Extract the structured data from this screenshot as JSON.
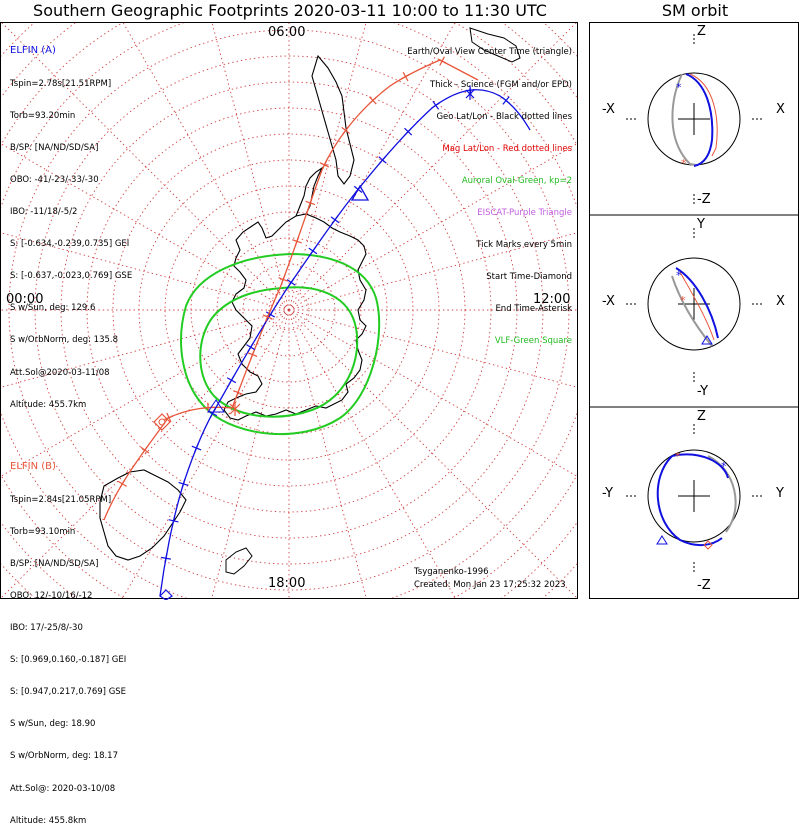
{
  "title": "Southern Geographic Footprints 2020-03-11 10:00 to 11:30 UTC",
  "orbit_title": "SM orbit",
  "hour_labels": {
    "top": "06:00",
    "left": "00:00",
    "right": "12:00",
    "bottom": "18:00"
  },
  "elfin_a": {
    "name": "ELFIN (A)",
    "color": "#1010e0",
    "lines": [
      "Tspin=2.78s[21.51RPM]",
      "Torb=93.20min",
      "B/SP: [NA/ND/SD/SA]",
      "OBO: -41/-23/-33/-30",
      "IBO: -11/18/-5/2",
      "S: [-0.634,-0.239,0.735] GEI",
      "S: [-0.637,-0.023,0.769] GSE",
      "S w/Sun, deg: 129.6",
      "S w/OrbNorm, deg: 135.8",
      "Att.Sol@2020-03-11/08",
      "Altitude: 455.7km"
    ]
  },
  "elfin_b": {
    "name": "ELFIN (B)",
    "color": "#e8553a",
    "lines": [
      "Tspin=2.84s[21.05RPM]",
      "Torb=93.10min",
      "B/SP: [NA/ND/SD/SA]",
      "OBO: 12/-10/16/-12",
      "IBO: 17/-25/8/-30",
      "S: [0.969,0.160,-0.187] GEI",
      "S: [0.947,0.217,0.769] GSE",
      "S w/Sun, deg: 18.90",
      "S w/OrbNorm, deg: 18.17",
      "Att.Sol@: 2020-03-10/08",
      "Altitude: 455.8km"
    ]
  },
  "legend": [
    {
      "text": "Earth/Oval View Center Time (triangle)",
      "color": "#000000"
    },
    {
      "text": "Thick - Science (FGM and/or EPD)",
      "color": "#000000"
    },
    {
      "text": "Geo Lat/Lon - Black dotted lines",
      "color": "#000000"
    },
    {
      "text": "Mag Lat/Lon - Red dotted lines",
      "color": "#e00000"
    },
    {
      "text": "Auroral Oval-Green, kp=2",
      "color": "#22bb22"
    },
    {
      "text": "EISCAT-Purple Triangle",
      "color": "#c060e0"
    },
    {
      "text": "Tick Marks every 5min",
      "color": "#000000"
    },
    {
      "text": "Start Time-Diamond",
      "color": "#000000"
    },
    {
      "text": "End Time-Asterisk",
      "color": "#000000"
    },
    {
      "text": "VLF-Green Square",
      "color": "#22bb22"
    }
  ],
  "credit": {
    "model": "Tsyganenko-1996",
    "created": "Created: Mon Jan 23 17:25:32 2023"
  },
  "panels": [
    {
      "top": "Z",
      "bottom": "-Z",
      "left": "-X",
      "right": "X"
    },
    {
      "top": "Y",
      "bottom": "-Y",
      "left": "-X",
      "right": "X"
    },
    {
      "top": "Z",
      "bottom": "-Z",
      "left": "-Y",
      "right": "Y"
    }
  ],
  "colors": {
    "elfin_a": "#1010e0",
    "elfin_b": "#e8553a",
    "grid": "#d04040",
    "oval": "#22cc22",
    "land": "#000000"
  }
}
